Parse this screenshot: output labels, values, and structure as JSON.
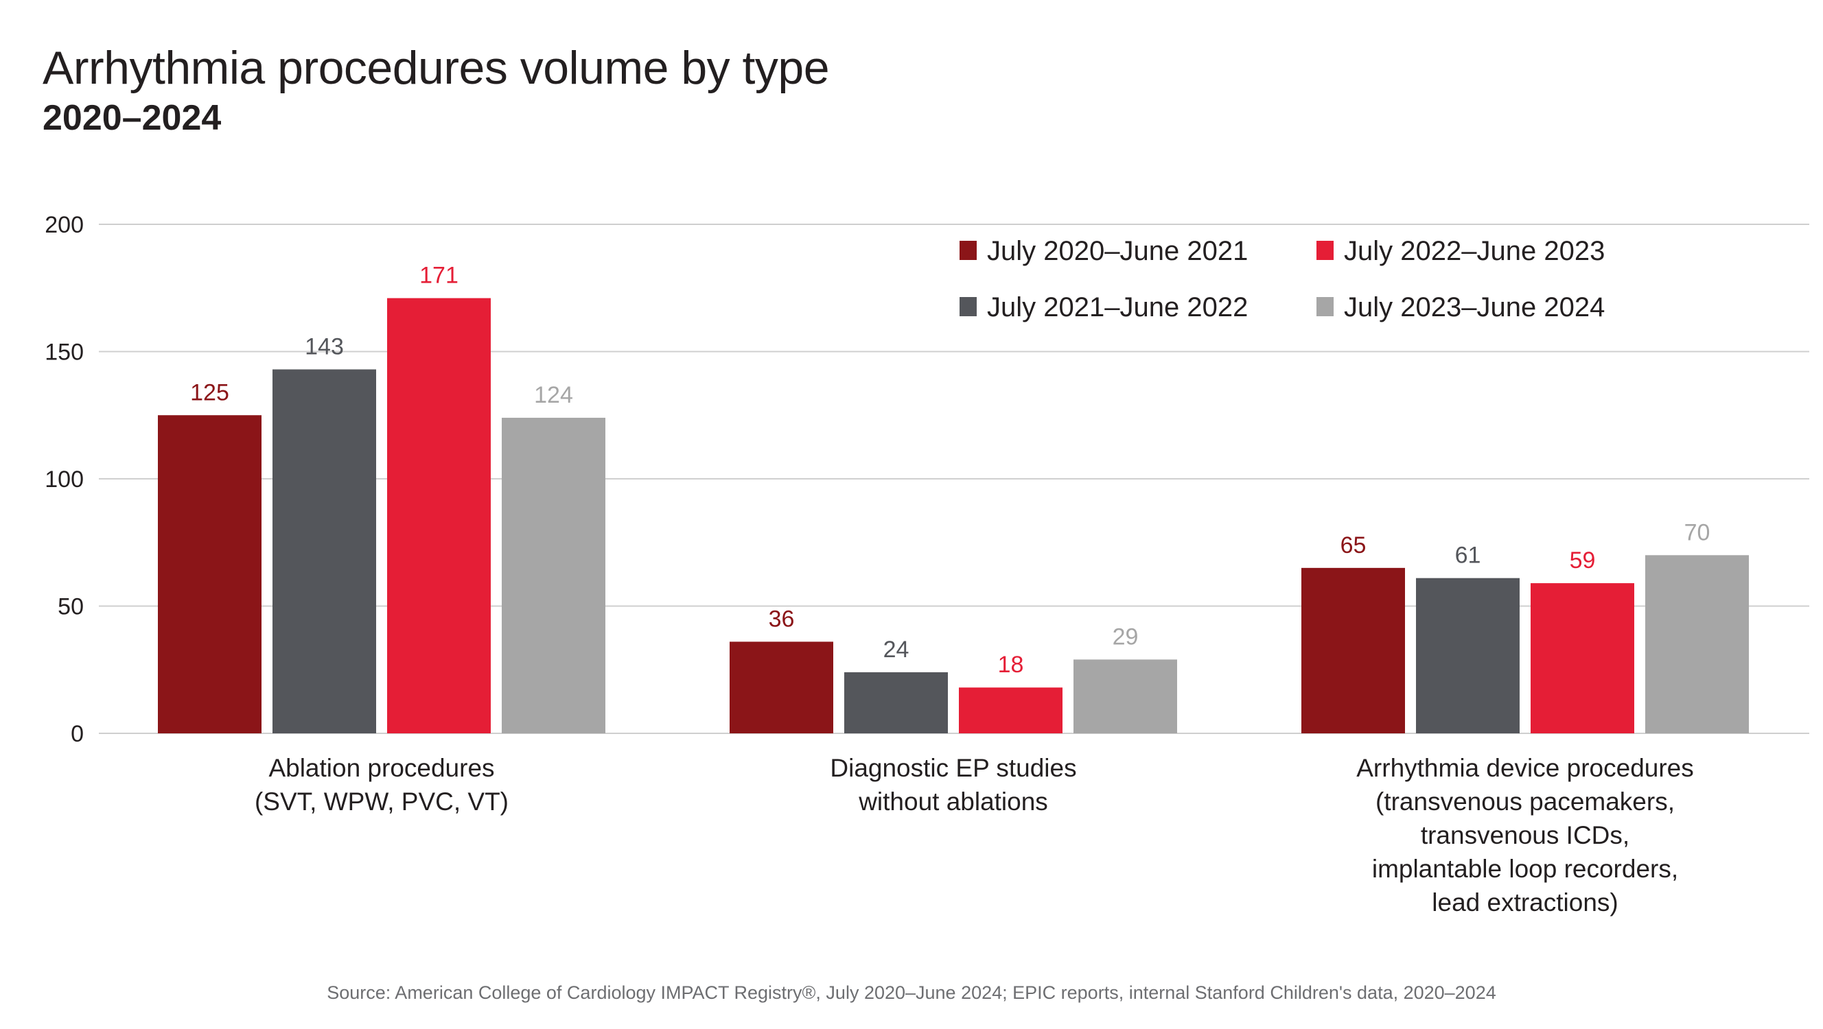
{
  "chart_data": {
    "type": "bar",
    "title": "Arrhythmia procedures volume by type",
    "subtitle": "2020–2024",
    "xlabel": "",
    "ylabel": "",
    "ylim": [
      0,
      200
    ],
    "yticks": [
      0,
      50,
      100,
      150,
      200
    ],
    "grid": true,
    "legend_position": "top-right",
    "categories": [
      [
        "Ablation procedures",
        "(SVT, WPW, PVC, VT)"
      ],
      [
        "Diagnostic EP studies",
        "without ablations"
      ],
      [
        "Arrhythmia device procedures",
        "(transvenous pacemakers,",
        "transvenous ICDs,",
        "implantable loop recorders,",
        "lead extractions)"
      ]
    ],
    "series": [
      {
        "name": "July 2020–June 2021",
        "color": "#8b1518",
        "label_color": "#8b1518",
        "values": [
          125,
          36,
          65
        ]
      },
      {
        "name": "July 2021–June 2022",
        "color": "#54565b",
        "label_color": "#54565b",
        "values": [
          143,
          24,
          61
        ]
      },
      {
        "name": "July 2022–June 2023",
        "color": "#e51e36",
        "label_color": "#e51e36",
        "values": [
          171,
          18,
          59
        ]
      },
      {
        "name": "July 2023–June 2024",
        "color": "#a6a6a6",
        "label_color": "#a6a6a6",
        "values": [
          124,
          29,
          70
        ]
      }
    ],
    "legend_order": [
      0,
      2,
      1,
      3
    ],
    "source": "Source: American College of Cardiology IMPACT Registry®, July 2020–June 2024; EPIC reports, internal Stanford Children's data, 2020–2024"
  }
}
